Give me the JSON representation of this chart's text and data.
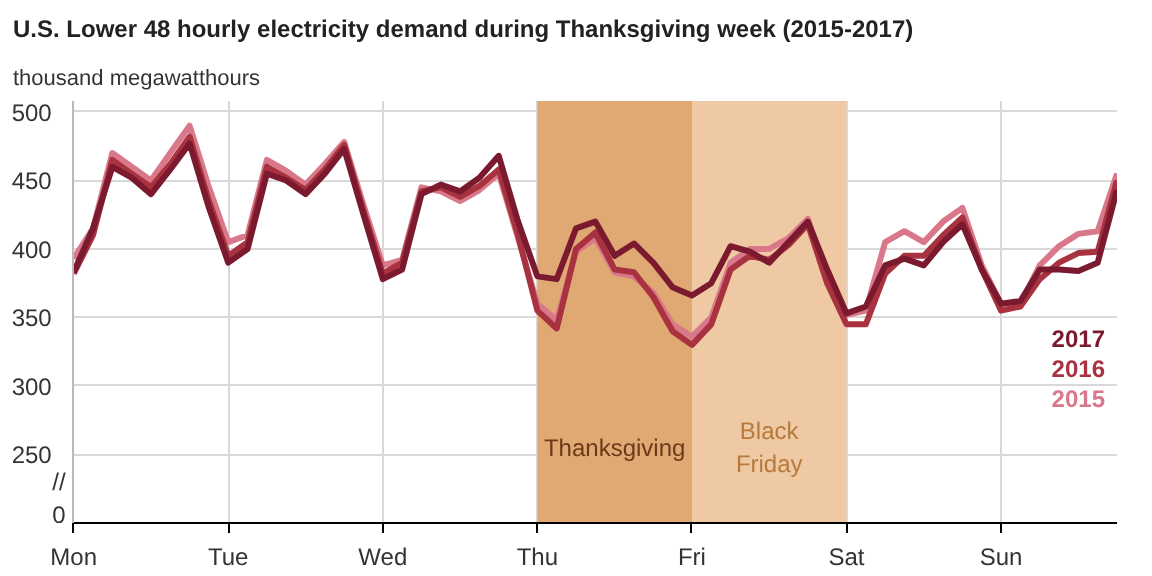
{
  "chart_data": {
    "type": "line",
    "title": "U.S. Lower 48 hourly electricity demand during Thanksgiving week (2015-2017)",
    "subtitle": "thousand megawatthours",
    "categories": [
      "Mon",
      null,
      null,
      null,
      null,
      null,
      null,
      null,
      "Tue",
      null,
      null,
      null,
      null,
      null,
      null,
      null,
      "Wed",
      null,
      null,
      null,
      null,
      null,
      null,
      null,
      "Thu",
      null,
      null,
      null,
      null,
      null,
      null,
      null,
      "Fri",
      null,
      null,
      null,
      null,
      null,
      null,
      null,
      "Sat",
      null,
      null,
      null,
      null,
      null,
      null,
      null,
      "Sun",
      null,
      null,
      null,
      null,
      null,
      null
    ],
    "series": [
      {
        "name": "2017",
        "color": "#7b1a2e",
        "values": [
          383,
          415,
          460,
          452,
          440,
          458,
          477,
          430,
          390,
          400,
          455,
          450,
          440,
          455,
          473,
          425,
          378,
          385,
          440,
          447,
          442,
          452,
          468,
          420,
          380,
          378,
          415,
          420,
          395,
          404,
          390,
          372,
          366,
          375,
          402,
          398,
          390,
          405,
          420,
          385,
          353,
          358,
          388,
          393,
          388,
          405,
          418,
          385,
          360,
          362,
          385,
          385,
          384,
          390,
          443
        ]
      },
      {
        "name": "2016",
        "color": "#a8323f",
        "values": [
          382,
          410,
          465,
          455,
          445,
          462,
          482,
          435,
          395,
          405,
          460,
          452,
          443,
          458,
          476,
          428,
          382,
          390,
          442,
          445,
          438,
          446,
          458,
          410,
          355,
          342,
          400,
          412,
          385,
          383,
          365,
          340,
          330,
          345,
          385,
          395,
          392,
          403,
          418,
          375,
          345,
          345,
          382,
          395,
          395,
          410,
          423,
          385,
          355,
          358,
          378,
          390,
          397,
          398,
          450
        ]
      },
      {
        "name": "2015",
        "color": "#d9788a",
        "values": [
          393,
          415,
          470,
          460,
          450,
          470,
          490,
          445,
          405,
          410,
          465,
          457,
          447,
          462,
          478,
          432,
          388,
          392,
          445,
          442,
          435,
          443,
          455,
          408,
          360,
          348,
          398,
          408,
          383,
          380,
          368,
          345,
          336,
          350,
          390,
          400,
          400,
          408,
          422,
          380,
          352,
          355,
          405,
          413,
          405,
          420,
          430,
          388,
          360,
          360,
          388,
          402,
          411,
          413,
          455
        ]
      }
    ],
    "ylim": [
      200,
      508
    ],
    "yticks": [
      250,
      300,
      350,
      400,
      450,
      500
    ],
    "bands": [
      {
        "axis": "x",
        "from": "Thu",
        "to": "Fri",
        "label": "Thanksgiving",
        "color": "#e0a872"
      },
      {
        "axis": "x",
        "from": "Fri",
        "to": "Sat",
        "label": "Black\nFriday",
        "color": "#eec9a3"
      }
    ],
    "annotations": [
      "//",
      "0"
    ],
    "grid": true,
    "line_style": "solid"
  }
}
